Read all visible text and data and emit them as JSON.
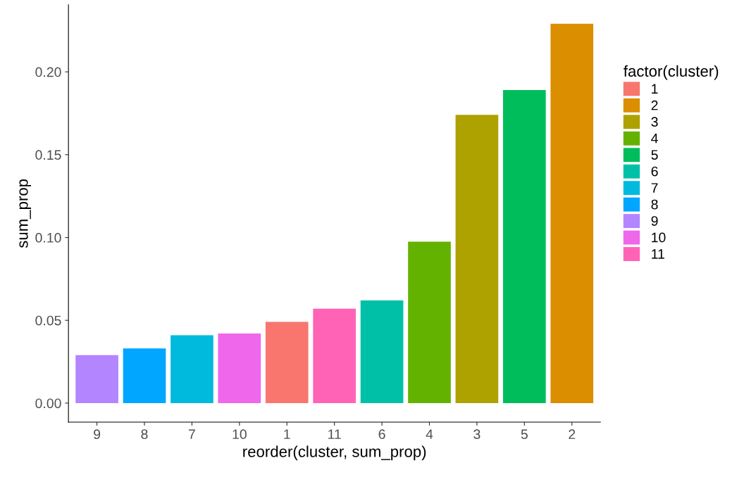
{
  "chart_data": {
    "type": "bar",
    "xlabel": "reorder(cluster, sum_prop)",
    "ylabel": "sum_prop",
    "legend_title": "factor(cluster)",
    "categories": [
      "9",
      "8",
      "7",
      "10",
      "1",
      "11",
      "6",
      "4",
      "3",
      "5",
      "2"
    ],
    "series": [
      {
        "name": "1",
        "color": "#f8766d",
        "values": [
          null,
          null,
          null,
          null,
          0.049,
          null,
          null,
          null,
          null,
          null,
          null
        ]
      },
      {
        "name": "2",
        "color": "#db8e00",
        "values": [
          null,
          null,
          null,
          null,
          null,
          null,
          null,
          null,
          null,
          null,
          0.229
        ]
      },
      {
        "name": "3",
        "color": "#aea200",
        "values": [
          null,
          null,
          null,
          null,
          null,
          null,
          null,
          null,
          0.174,
          null,
          null
        ]
      },
      {
        "name": "4",
        "color": "#64b200",
        "values": [
          null,
          null,
          null,
          null,
          null,
          null,
          null,
          0.0975,
          null,
          null,
          null
        ]
      },
      {
        "name": "5",
        "color": "#00bd5c",
        "values": [
          null,
          null,
          null,
          null,
          null,
          null,
          null,
          null,
          null,
          0.189,
          null
        ]
      },
      {
        "name": "6",
        "color": "#00c1a7",
        "values": [
          null,
          null,
          null,
          null,
          null,
          null,
          0.062,
          null,
          null,
          null,
          null
        ]
      },
      {
        "name": "7",
        "color": "#00bade",
        "values": [
          null,
          null,
          0.041,
          null,
          null,
          null,
          null,
          null,
          null,
          null,
          null
        ]
      },
      {
        "name": "8",
        "color": "#00a6ff",
        "values": [
          null,
          0.033,
          null,
          null,
          null,
          null,
          null,
          null,
          null,
          null,
          null
        ]
      },
      {
        "name": "9",
        "color": "#b385ff",
        "values": [
          0.029,
          null,
          null,
          null,
          null,
          null,
          null,
          null,
          null,
          null,
          null
        ]
      },
      {
        "name": "10",
        "color": "#ef67eb",
        "values": [
          null,
          null,
          null,
          0.042,
          null,
          null,
          null,
          null,
          null,
          null,
          null
        ]
      },
      {
        "name": "11",
        "color": "#ff63b6",
        "values": [
          null,
          null,
          null,
          null,
          null,
          0.057,
          null,
          null,
          null,
          null,
          null
        ]
      }
    ],
    "ylim": [
      -0.0115,
      0.2405
    ],
    "yticks": [
      {
        "value": 0,
        "label": "0.00"
      },
      {
        "value": 0.05,
        "label": "0.05"
      },
      {
        "value": 0.1,
        "label": "0.10"
      },
      {
        "value": 0.15,
        "label": "0.15"
      },
      {
        "value": 0.2,
        "label": "0.20"
      }
    ],
    "grid": false,
    "legend": "right"
  }
}
